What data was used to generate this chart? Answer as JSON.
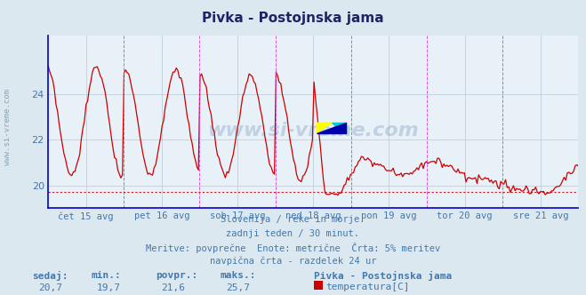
{
  "title": "Pivka - Postojnska jama",
  "bg_color": "#dce8f0",
  "plot_bg_color": "#e8f0f8",
  "line_color": "#cc0000",
  "line_width": 0.9,
  "y_min": 19.0,
  "y_max": 26.6,
  "y_ticks": [
    20,
    22,
    24
  ],
  "x_labels": [
    "čet 15 avg",
    "pet 16 avg",
    "sob 17 avg",
    "ned 18 avg",
    "pon 19 avg",
    "tor 20 avg",
    "sre 21 avg"
  ],
  "vline_color": "#dd44dd",
  "hline_color": "#cc0000",
  "hline_y": 19.7,
  "grid_color": "#b8c8d8",
  "text_color": "#4477aa",
  "title_color": "#222266",
  "spine_color": "#0000cc",
  "footer_lines": [
    "Slovenija / reke in morje.",
    "zadnji teden / 30 minut.",
    "Meritve: povprečne  Enote: metrične  Črta: 5% meritev",
    "navpična črta - razdelek 24 ur"
  ],
  "stats_labels": [
    "sedaj:",
    "min.:",
    "povpr.:",
    "maks.:"
  ],
  "stats_values": [
    "20,7",
    "19,7",
    "21,6",
    "25,7"
  ],
  "legend_name": "Pivka - Postojnska jama",
  "legend_item": "temperatura[C]",
  "legend_color": "#cc0000",
  "watermark": "www.si-vreme.com",
  "watermark_side": "www.si-vreme.com",
  "n_points": 336
}
